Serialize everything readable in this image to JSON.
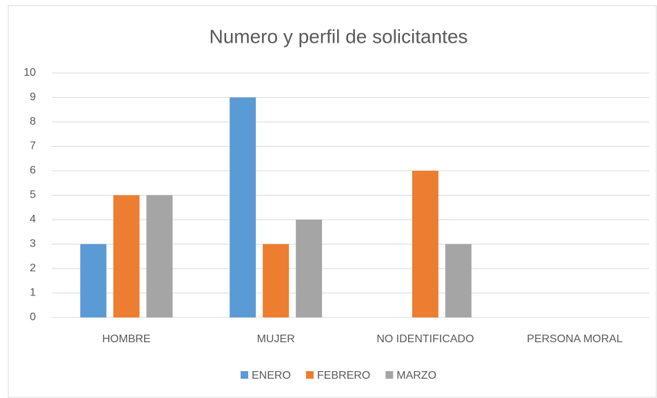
{
  "chart_data": {
    "type": "bar",
    "title": "Numero y perfil de solicitantes",
    "categories": [
      "HOMBRE",
      "MUJER",
      "NO IDENTIFICADO",
      "PERSONA MORAL"
    ],
    "series": [
      {
        "name": "ENERO",
        "color": "#5b9bd5",
        "values": [
          3,
          9,
          0,
          0
        ]
      },
      {
        "name": "FEBRERO",
        "color": "#ed7d31",
        "values": [
          5,
          3,
          6,
          0
        ]
      },
      {
        "name": "MARZO",
        "color": "#a5a5a5",
        "values": [
          5,
          4,
          3,
          0
        ]
      }
    ],
    "ylim": [
      0,
      10
    ],
    "yticks": [
      0,
      1,
      2,
      3,
      4,
      5,
      6,
      7,
      8,
      9,
      10
    ],
    "grid": true,
    "legend": "bottom"
  }
}
